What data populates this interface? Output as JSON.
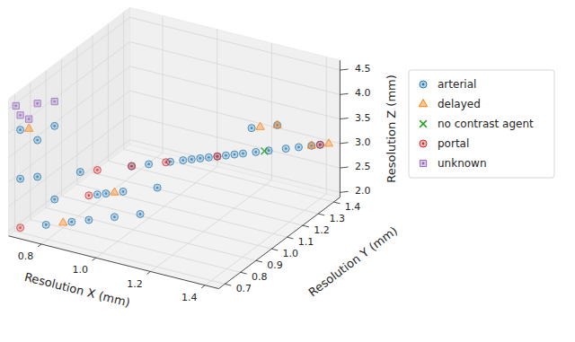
{
  "chart_data": {
    "type": "scatter3d",
    "x_label": "Resolution X (mm)",
    "y_label": "Resolution Y (mm)",
    "z_label": "Resolution Z (mm)",
    "xlim": [
      0.68,
      1.45
    ],
    "ylim": [
      0.66,
      1.44
    ],
    "zlim": [
      1.9,
      4.7
    ],
    "xticks": [
      0.8,
      {
        "value": 1,
        "label": "1.0"
      },
      1.2,
      1.4
    ],
    "yticks": [
      0.7,
      0.8,
      0.9,
      {
        "value": 1,
        "label": "1.0"
      },
      1.1,
      1.2,
      1.3,
      1.4
    ],
    "zticks": [
      {
        "value": 2,
        "label": "2.0"
      },
      2.5,
      {
        "value": 3,
        "label": "3.0"
      },
      3.5,
      {
        "value": 4,
        "label": "4.0"
      },
      4.5
    ],
    "grid": true,
    "legend": "right",
    "series": [
      {
        "name": "arterial",
        "color": "#1f77b4",
        "marker": "circle-dot",
        "x": [
          0.7,
          0.74,
          0.78,
          0.7,
          0.78,
          0.74,
          0.82,
          0.86,
          0.88,
          0.9,
          0.92,
          0.84,
          0.94,
          0.98,
          0.96,
          1.0,
          1.02,
          1.05,
          1.08,
          1.1,
          1.12,
          1.14,
          1.16,
          1.18,
          1.2,
          1.22,
          1.25,
          1.28,
          1.3,
          1.32,
          1.35,
          1.38,
          1.4,
          0.76,
          1.24
        ],
        "y": [
          0.7,
          0.74,
          0.78,
          0.7,
          0.78,
          0.74,
          0.82,
          0.86,
          0.88,
          0.9,
          0.92,
          0.84,
          0.94,
          0.98,
          0.96,
          1.0,
          1.02,
          1.05,
          1.08,
          1.1,
          1.12,
          1.14,
          1.16,
          1.18,
          1.2,
          1.22,
          1.25,
          1.28,
          1.3,
          1.32,
          1.35,
          1.38,
          1.4,
          0.76,
          1.24
        ],
        "z": [
          3.0,
          3.0,
          2.5,
          4.0,
          4.0,
          3.75,
          2.0,
          2.0,
          2.5,
          2.5,
          2.0,
          3.0,
          2.5,
          2.0,
          3.0,
          3.0,
          2.5,
          3.0,
          3.0,
          3.0,
          3.0,
          3.0,
          3.0,
          3.0,
          3.0,
          3.0,
          3.0,
          3.0,
          3.5,
          3.0,
          3.0,
          3.0,
          3.0,
          2.0,
          3.5
        ]
      },
      {
        "name": "delayed",
        "color": "#ff7f0e",
        "marker": "triangle",
        "x": [
          0.72,
          0.8,
          0.92,
          1.26,
          1.3,
          1.38,
          1.42
        ],
        "y": [
          0.72,
          0.8,
          0.92,
          1.26,
          1.3,
          1.38,
          1.42
        ],
        "z": [
          4.0,
          2.0,
          2.5,
          3.5,
          3.5,
          3.0,
          3.0
        ]
      },
      {
        "name": "no contrast agent",
        "color": "#2ca02c",
        "marker": "x",
        "x": [
          1.27
        ],
        "y": [
          1.27
        ],
        "z": [
          3.0
        ]
      },
      {
        "name": "portal",
        "color": "#d62728",
        "marker": "circle-dot",
        "x": [
          0.7,
          0.88,
          0.96,
          1.04,
          1.16,
          1.4,
          0.86
        ],
        "y": [
          0.7,
          0.88,
          0.96,
          1.04,
          1.16,
          1.4,
          0.86
        ],
        "z": [
          2.0,
          3.0,
          3.0,
          3.0,
          3.0,
          3.0,
          2.5
        ]
      },
      {
        "name": "unknown",
        "color": "#9467bd",
        "marker": "square-dot",
        "x": [
          0.69,
          0.7,
          0.72,
          0.74,
          0.78
        ],
        "y": [
          0.69,
          0.7,
          0.72,
          0.74,
          0.78
        ],
        "z": [
          4.5,
          4.3,
          4.2,
          4.5,
          4.5
        ]
      }
    ]
  }
}
